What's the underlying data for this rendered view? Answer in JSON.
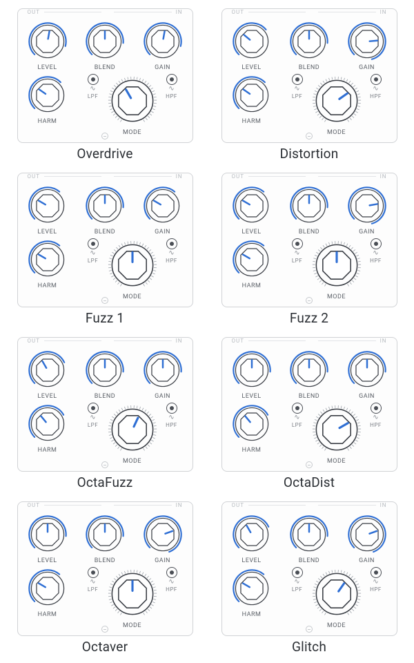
{
  "colors": {
    "accent": "#2f6fd4",
    "knob_stroke": "#3a3e45",
    "tick": "#9aa0a8",
    "bg": "#fdfdfd",
    "label": "#5a5f66"
  },
  "knob_labels": {
    "level": "LEVEL",
    "blend": "BLEND",
    "gain": "GAIN",
    "harm": "HARM",
    "mode": "MODE",
    "lpf": "LPF",
    "hpf": "HPF",
    "out": "OUT",
    "in": "IN"
  },
  "pedals": [
    {
      "name": "Overdrive",
      "level_angle": 10,
      "blend_angle": 0,
      "gain_angle": 10,
      "harm_angle": -55,
      "mode_angle": -30,
      "level_arc": 240,
      "blend_arc": 230,
      "gain_arc": 240,
      "harm_arc": 180
    },
    {
      "name": "Distortion",
      "level_angle": -50,
      "blend_angle": 0,
      "gain_angle": 85,
      "harm_angle": -55,
      "mode_angle": 55,
      "level_arc": 185,
      "blend_arc": 230,
      "gain_arc": 300,
      "harm_arc": 180
    },
    {
      "name": "Fuzz 1",
      "level_angle": -60,
      "blend_angle": 0,
      "gain_angle": -60,
      "harm_angle": -60,
      "mode_angle": 0,
      "level_arc": 175,
      "blend_arc": 230,
      "gain_arc": 175,
      "harm_arc": 175
    },
    {
      "name": "Fuzz 2",
      "level_angle": -60,
      "blend_angle": 0,
      "gain_angle": 80,
      "harm_angle": -60,
      "mode_angle": 0,
      "level_arc": 175,
      "blend_arc": 230,
      "gain_arc": 300,
      "harm_arc": 175
    },
    {
      "name": "OctaFuzz",
      "level_angle": -30,
      "blend_angle": 0,
      "gain_angle": 0,
      "harm_angle": -40,
      "mode_angle": 25,
      "level_arc": 200,
      "blend_arc": 230,
      "gain_arc": 230,
      "harm_arc": 195
    },
    {
      "name": "OctaDist",
      "level_angle": 0,
      "blend_angle": 0,
      "gain_angle": 0,
      "harm_angle": -40,
      "mode_angle": 60,
      "level_arc": 230,
      "blend_arc": 230,
      "gain_arc": 230,
      "harm_arc": 195
    },
    {
      "name": "Octaver",
      "level_angle": 0,
      "blend_angle": 0,
      "gain_angle": 70,
      "harm_angle": -60,
      "mode_angle": 0,
      "level_arc": 230,
      "blend_arc": 230,
      "gain_arc": 295,
      "harm_arc": 175
    },
    {
      "name": "Glitch",
      "level_angle": -30,
      "blend_angle": 0,
      "gain_angle": 70,
      "harm_angle": -60,
      "mode_angle": 35,
      "level_arc": 200,
      "blend_arc": 230,
      "gain_arc": 295,
      "harm_arc": 175
    }
  ]
}
